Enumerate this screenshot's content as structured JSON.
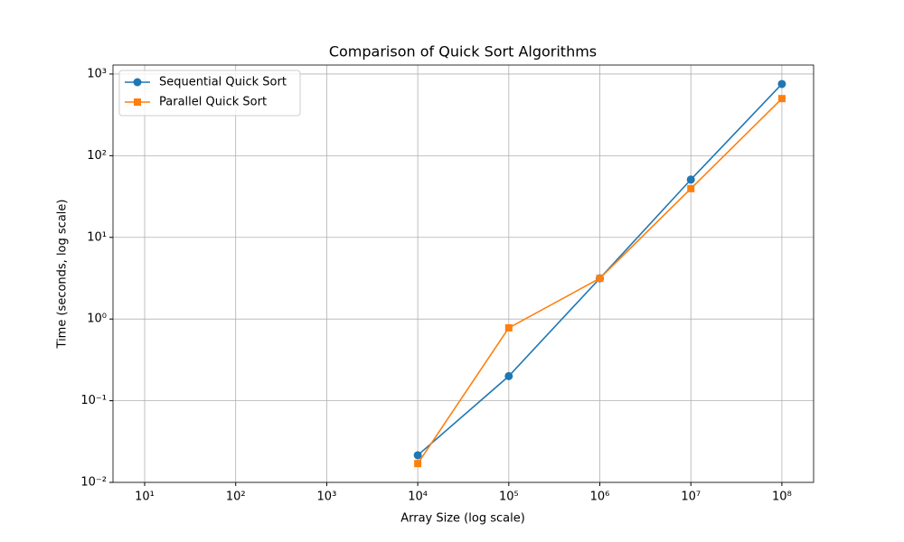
{
  "chart_data": {
    "type": "line",
    "title": "Comparison of Quick Sort Algorithms",
    "x_label": "Array Size (log scale)",
    "y_label": "Time (seconds, log scale)",
    "x": [
      10000,
      100000,
      1000000,
      10000000,
      100000000
    ],
    "series": [
      {
        "name": "Sequential Quick Sort",
        "color": "#1f77b4",
        "marker": "circle",
        "values": [
          0.0215,
          0.2,
          3.15,
          51,
          755
        ]
      },
      {
        "name": "Parallel Quick Sort",
        "color": "#ff7f0e",
        "marker": "square",
        "values": [
          0.017,
          0.78,
          3.15,
          39.5,
          500
        ]
      }
    ],
    "xscale": "log",
    "yscale": "log",
    "xlim": [
      4.49,
      223000000
    ],
    "ylim": [
      0.01,
      1288
    ],
    "xticks": [
      {
        "value": 10,
        "label": "10¹"
      },
      {
        "value": 100,
        "label": "10²"
      },
      {
        "value": 1000,
        "label": "10³"
      },
      {
        "value": 10000,
        "label": "10⁴"
      },
      {
        "value": 100000,
        "label": "10⁵"
      },
      {
        "value": 1000000,
        "label": "10⁶"
      },
      {
        "value": 10000000,
        "label": "10⁷"
      },
      {
        "value": 100000000,
        "label": "10⁸"
      }
    ],
    "yticks": [
      {
        "value": 0.01,
        "label": "10⁻²"
      },
      {
        "value": 0.1,
        "label": "10⁻¹"
      },
      {
        "value": 1,
        "label": "10⁰"
      },
      {
        "value": 10,
        "label": "10¹"
      },
      {
        "value": 100,
        "label": "10²"
      },
      {
        "value": 1000,
        "label": "10³"
      }
    ],
    "grid": true,
    "legend": "upper left"
  }
}
